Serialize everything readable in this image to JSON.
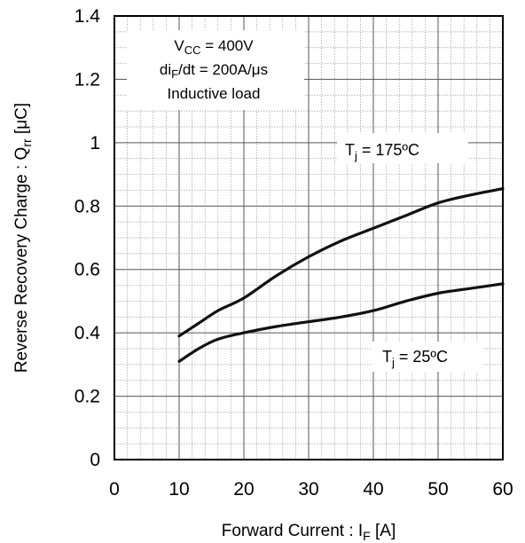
{
  "chart_data": {
    "type": "line",
    "xlabel": {
      "main": "Forward Current : I",
      "sub": "F",
      "unit": " [A]"
    },
    "ylabel": {
      "main": "Reverse Recovery Charge : Q",
      "sub": "rr",
      "unit": "  [μC]"
    },
    "xlim": [
      0,
      60
    ],
    "ylim": [
      0,
      1.4
    ],
    "x_ticks": [
      "0",
      "10",
      "20",
      "30",
      "40",
      "50",
      "60"
    ],
    "y_ticks": [
      "0",
      "0.2",
      "0.4",
      "0.6",
      "0.8",
      "1",
      "1.2",
      "1.4"
    ],
    "grid": true,
    "conditions": {
      "vcc": {
        "main": "V",
        "sub": "CC",
        "rest": " = 400V"
      },
      "di": {
        "main": "di",
        "sub": "F",
        "rest": "/dt = 200A/μs"
      },
      "load": "Inductive load"
    },
    "series": [
      {
        "name": {
          "main": "T",
          "sub": "j",
          "rest": " = 175ºC"
        },
        "x": [
          10,
          13,
          16,
          20,
          25,
          30,
          35,
          40,
          45,
          50,
          55,
          60
        ],
        "y": [
          0.39,
          0.43,
          0.47,
          0.51,
          0.58,
          0.64,
          0.69,
          0.73,
          0.77,
          0.81,
          0.835,
          0.855
        ]
      },
      {
        "name": {
          "main": "T",
          "sub": "j",
          "rest": " = 25ºC"
        },
        "x": [
          10,
          13,
          16,
          20,
          25,
          30,
          35,
          40,
          45,
          50,
          55,
          60
        ],
        "y": [
          0.31,
          0.35,
          0.38,
          0.4,
          0.42,
          0.435,
          0.45,
          0.47,
          0.5,
          0.525,
          0.54,
          0.555
        ]
      }
    ]
  }
}
